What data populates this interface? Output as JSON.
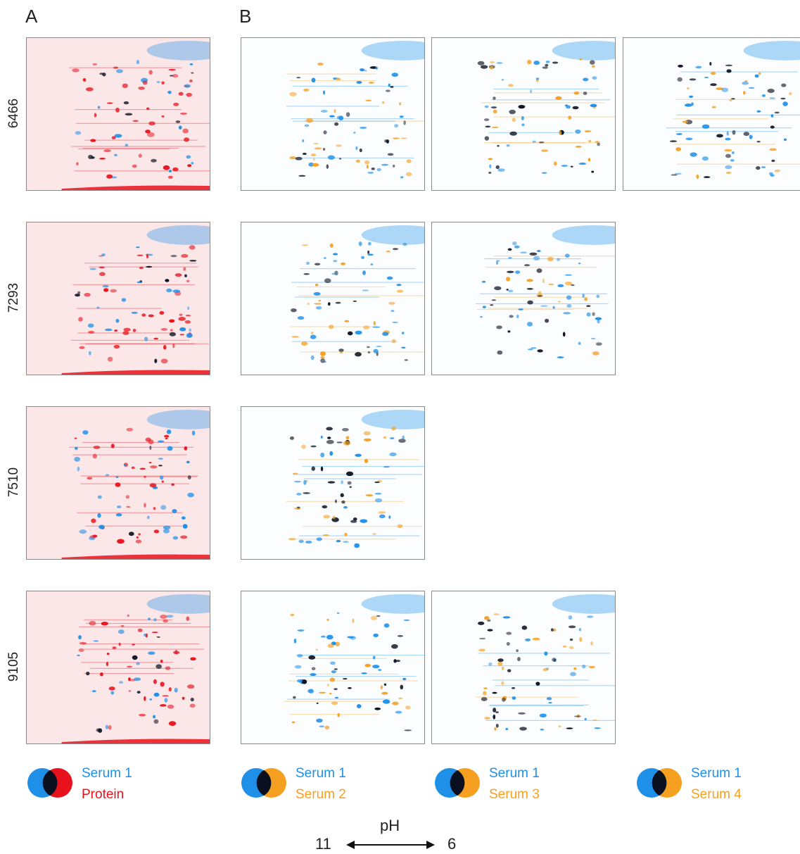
{
  "panels": {
    "a": "A",
    "b": "B"
  },
  "rows": [
    {
      "label": "6466"
    },
    {
      "label": "7293"
    },
    {
      "label": "7510"
    },
    {
      "label": "9105"
    }
  ],
  "legends": [
    {
      "line1": "Serum 1",
      "line2": "Protein",
      "color1": "#1e90e8",
      "color2": "#e8121c"
    },
    {
      "line1": "Serum 1",
      "line2": "Serum 2",
      "color1": "#1e90e8",
      "color2": "#f5a020"
    },
    {
      "line1": "Serum 1",
      "line2": "Serum 3",
      "color1": "#1e90e8",
      "color2": "#f5a020"
    },
    {
      "line1": "Serum 1",
      "line2": "Serum 4",
      "color1": "#1e90e8",
      "color2": "#f5a020"
    }
  ],
  "ph_axis": {
    "title": "pH",
    "left": "11",
    "right": "6"
  },
  "colors": {
    "serum1": "#1e90e8",
    "protein": "#e8121c",
    "serum_other": "#f5a020",
    "overlap": "#0a1020"
  }
}
